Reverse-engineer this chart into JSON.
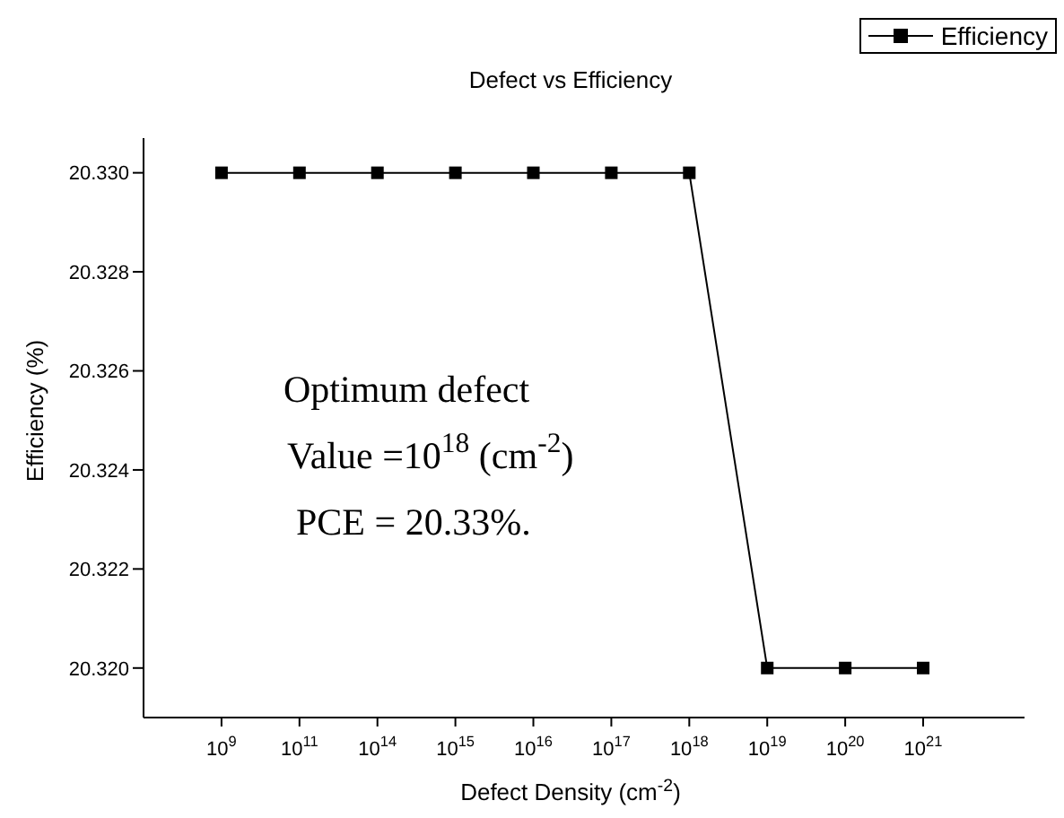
{
  "chart_data": {
    "type": "line",
    "title": "Defect vs Efficiency",
    "xlabel": "Defect  Density (cm$^{-2}$)",
    "ylabel": "Efficiency (%)",
    "categories": [
      "10$^{9}$",
      "10$^{11}$",
      "10$^{14}$",
      "10$^{15}$",
      "10$^{16}$",
      "10$^{17}$",
      "10$^{18}$",
      "10$^{19}$",
      "10$^{20}$",
      "10$^{21}$"
    ],
    "series": [
      {
        "name": "Efficiency",
        "color": "#000000",
        "values": [
          20.33,
          20.33,
          20.33,
          20.33,
          20.33,
          20.33,
          20.33,
          20.32,
          20.32,
          20.32
        ]
      }
    ],
    "ylim": [
      20.319,
      20.3307
    ],
    "yticks": [
      {
        "value": 20.32,
        "label": "20.320"
      },
      {
        "value": 20.322,
        "label": "20.322"
      },
      {
        "value": 20.324,
        "label": "20.324"
      },
      {
        "value": 20.326,
        "label": "20.326"
      },
      {
        "value": 20.328,
        "label": "20.328"
      },
      {
        "value": 20.33,
        "label": "20.330"
      }
    ],
    "annotations": [
      "Optimum defect",
      "Value =10$^{18}$ (cm$^{-2}$)",
      "PCE = 20.33%."
    ],
    "legend": "top right",
    "marker": "square",
    "line_style": "solid",
    "grid": false
  }
}
